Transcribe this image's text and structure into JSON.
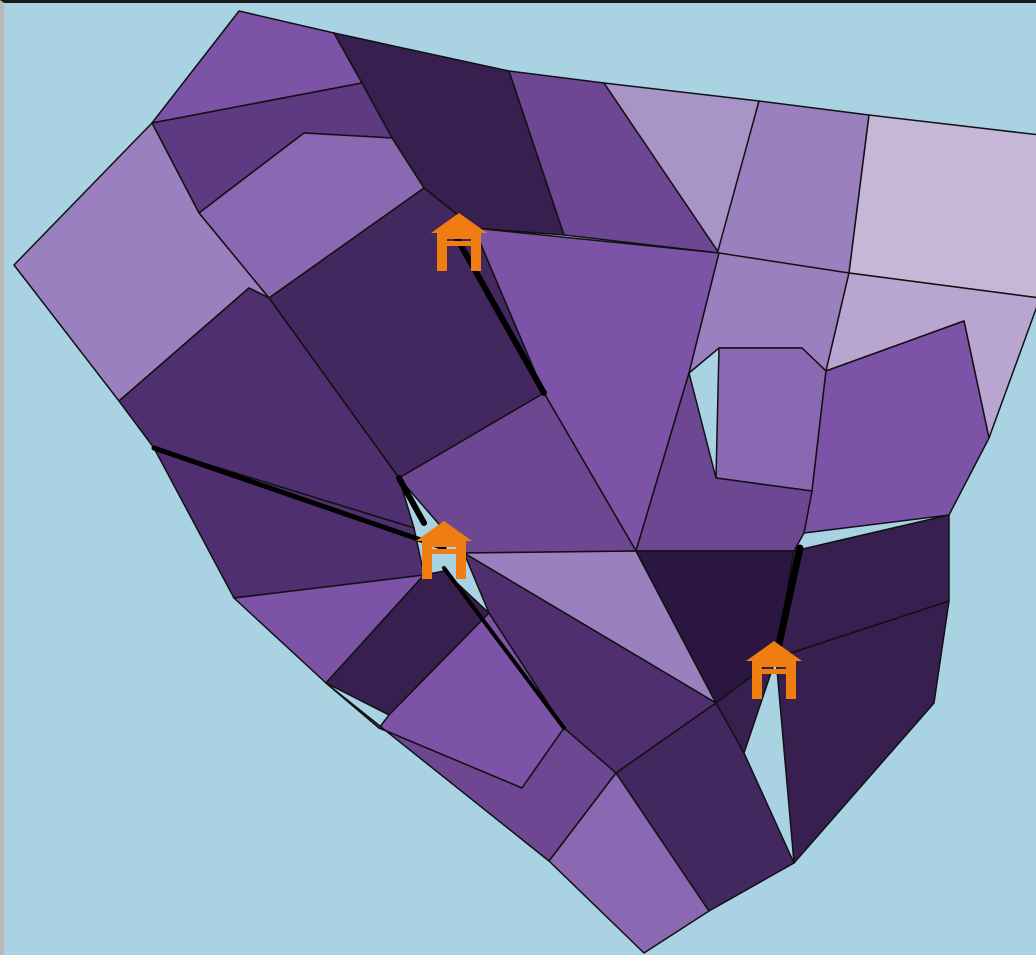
{
  "map": {
    "background_color": "#a9d3e3",
    "outline_color": "#111111",
    "palette": [
      "#c6b6d8",
      "#b9a6d0",
      "#a994c8",
      "#9a80bf",
      "#8a68b2",
      "#7c53a6",
      "#6e4793",
      "#5e3a82",
      "#4f2f70",
      "#43275f",
      "#37204f",
      "#2a1640"
    ],
    "marker": {
      "icon": "house-icon",
      "color": "#f07d12"
    },
    "regions": [
      {
        "name": "region-nw-top",
        "shade": 5
      },
      {
        "name": "region-north-dark",
        "shade": 10
      },
      {
        "name": "region-north-mid",
        "shade": 6
      },
      {
        "name": "region-ne-light",
        "shade": 2
      },
      {
        "name": "region-ne-mid",
        "shade": 3
      },
      {
        "name": "region-ne-corner",
        "shade": 0
      },
      {
        "name": "region-nw-band",
        "shade": 7
      },
      {
        "name": "region-nw-inner",
        "shade": 4
      },
      {
        "name": "region-west-light",
        "shade": 3
      },
      {
        "name": "region-center-north-dark",
        "shade": 9
      },
      {
        "name": "region-center-big",
        "shade": 5
      },
      {
        "name": "region-east-light",
        "shade": 3
      },
      {
        "name": "region-east-pale",
        "shade": 1
      },
      {
        "name": "region-east-block",
        "shade": 4
      },
      {
        "name": "region-east-purple",
        "shade": 5
      },
      {
        "name": "region-center-east",
        "shade": 6
      },
      {
        "name": "region-west-dark",
        "shade": 8
      },
      {
        "name": "region-center-mid",
        "shade": 6
      },
      {
        "name": "region-southwest",
        "shade": 8
      },
      {
        "name": "region-center-light",
        "shade": 3
      },
      {
        "name": "region-south-central-dark",
        "shade": 11
      },
      {
        "name": "region-se-dark",
        "shade": 10
      },
      {
        "name": "region-sw-purple",
        "shade": 5
      },
      {
        "name": "region-south-dark-small",
        "shade": 10
      },
      {
        "name": "region-south-purple",
        "shade": 5
      },
      {
        "name": "region-south-center",
        "shade": 8
      },
      {
        "name": "region-south-small-dark",
        "shade": 10
      },
      {
        "name": "region-se-large",
        "shade": 10
      },
      {
        "name": "region-south-strip",
        "shade": 6
      },
      {
        "name": "region-south-bottom",
        "shade": 4
      },
      {
        "name": "region-south-deep",
        "shade": 9
      }
    ],
    "roads": [
      {
        "name": "road-north"
      },
      {
        "name": "road-west"
      },
      {
        "name": "road-center"
      },
      {
        "name": "road-southeast"
      },
      {
        "name": "road-south"
      }
    ],
    "markers": [
      {
        "name": "house-marker-north"
      },
      {
        "name": "house-marker-center"
      },
      {
        "name": "house-marker-east"
      }
    ]
  }
}
